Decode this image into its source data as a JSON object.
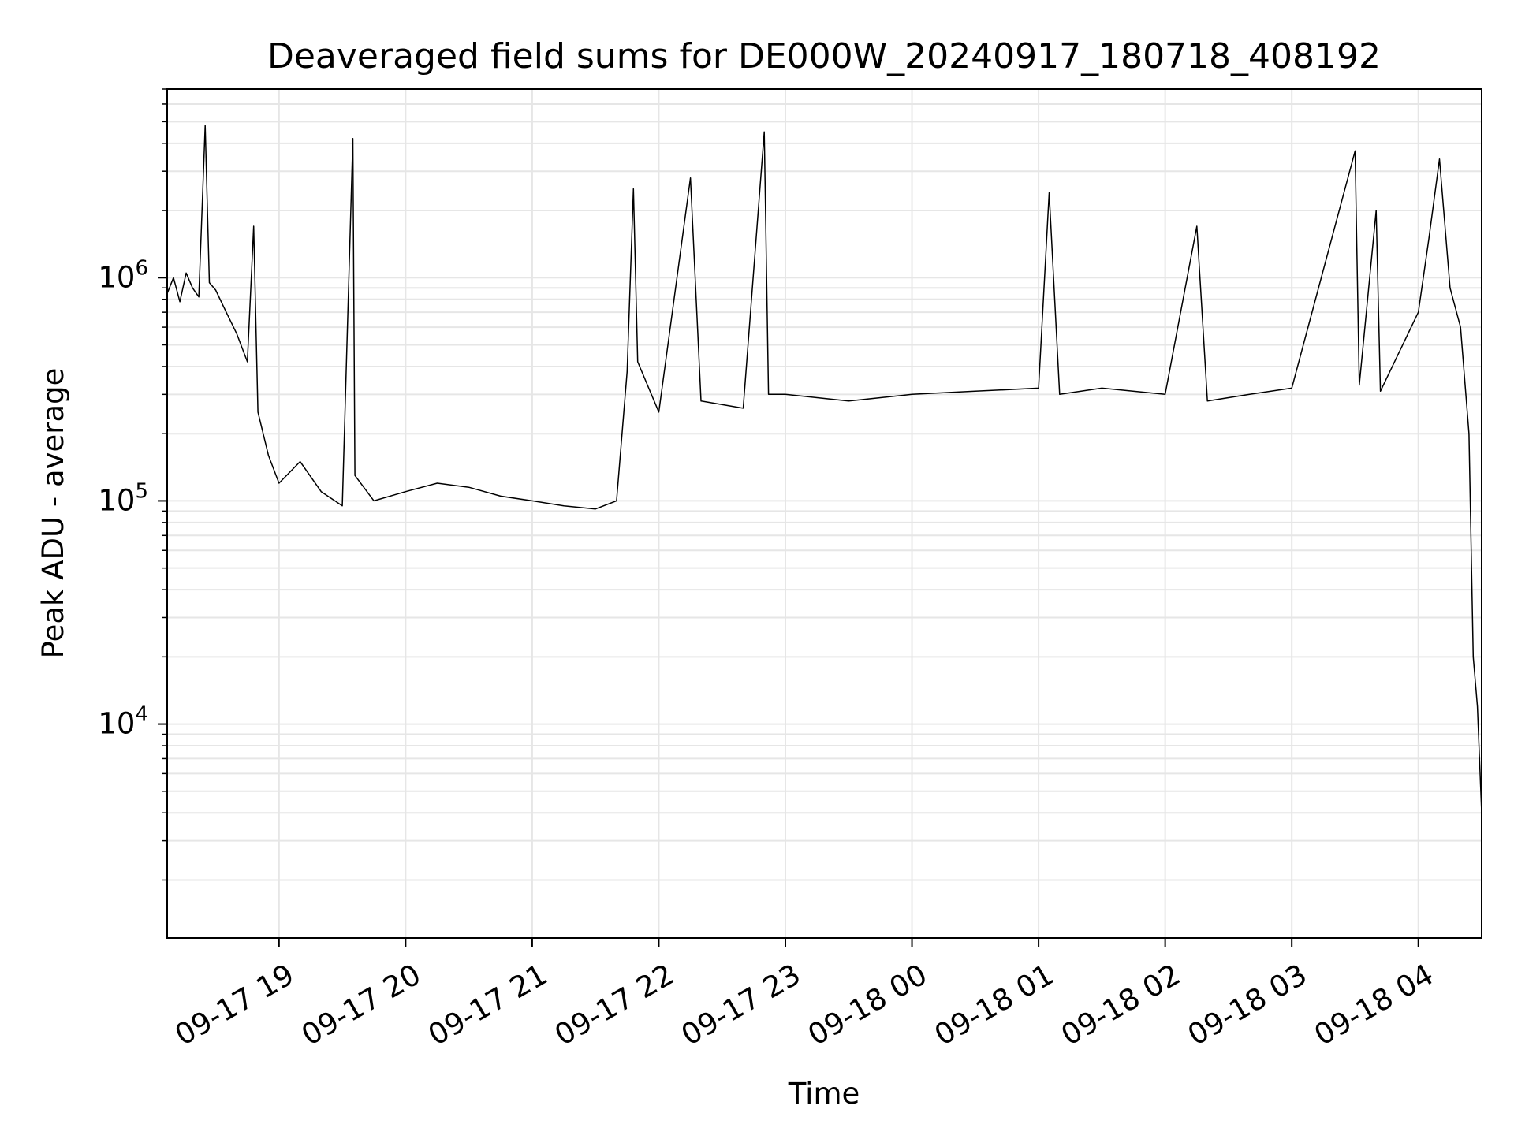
{
  "chart_data": {
    "type": "line",
    "title": "Deaveraged field sums for DE000W_20240917_180718_408192",
    "xlabel": "Time",
    "ylabel": "Peak ADU - average",
    "yscale": "log",
    "grid": true,
    "line_color": "#000000",
    "xlim": [
      "2024-09-17 18:07",
      "2024-09-18 04:30"
    ],
    "ylim": [
      1100,
      7000000
    ],
    "x_ticks": [
      {
        "t": "2024-09-17 19:00",
        "label": "09-17 19"
      },
      {
        "t": "2024-09-17 20:00",
        "label": "09-17 20"
      },
      {
        "t": "2024-09-17 21:00",
        "label": "09-17 21"
      },
      {
        "t": "2024-09-17 22:00",
        "label": "09-17 22"
      },
      {
        "t": "2024-09-17 23:00",
        "label": "09-17 23"
      },
      {
        "t": "2024-09-18 00:00",
        "label": "09-18 00"
      },
      {
        "t": "2024-09-18 01:00",
        "label": "09-18 01"
      },
      {
        "t": "2024-09-18 02:00",
        "label": "09-18 02"
      },
      {
        "t": "2024-09-18 03:00",
        "label": "09-18 03"
      },
      {
        "t": "2024-09-18 04:00",
        "label": "09-18 04"
      }
    ],
    "y_ticks": [
      {
        "value": 10000,
        "base": "10",
        "exp": "4"
      },
      {
        "value": 100000,
        "base": "10",
        "exp": "5"
      },
      {
        "value": 1000000,
        "base": "10",
        "exp": "6"
      }
    ],
    "series": [
      {
        "points": [
          [
            "2024-09-17 18:07",
            850000
          ],
          [
            "2024-09-17 18:10",
            1000000
          ],
          [
            "2024-09-17 18:13",
            780000
          ],
          [
            "2024-09-17 18:16",
            1050000
          ],
          [
            "2024-09-17 18:19",
            900000
          ],
          [
            "2024-09-17 18:22",
            820000
          ],
          [
            "2024-09-17 18:25",
            4800000
          ],
          [
            "2024-09-17 18:27",
            950000
          ],
          [
            "2024-09-17 18:30",
            880000
          ],
          [
            "2024-09-17 18:35",
            700000
          ],
          [
            "2024-09-17 18:40",
            560000
          ],
          [
            "2024-09-17 18:45",
            420000
          ],
          [
            "2024-09-17 18:48",
            1700000
          ],
          [
            "2024-09-17 18:50",
            250000
          ],
          [
            "2024-09-17 18:55",
            160000
          ],
          [
            "2024-09-17 19:00",
            120000
          ],
          [
            "2024-09-17 19:10",
            150000
          ],
          [
            "2024-09-17 19:20",
            110000
          ],
          [
            "2024-09-17 19:30",
            95000
          ],
          [
            "2024-09-17 19:35",
            4200000
          ],
          [
            "2024-09-17 19:36",
            130000
          ],
          [
            "2024-09-17 19:45",
            100000
          ],
          [
            "2024-09-17 20:00",
            110000
          ],
          [
            "2024-09-17 20:15",
            120000
          ],
          [
            "2024-09-17 20:30",
            115000
          ],
          [
            "2024-09-17 20:45",
            105000
          ],
          [
            "2024-09-17 21:00",
            100000
          ],
          [
            "2024-09-17 21:15",
            95000
          ],
          [
            "2024-09-17 21:30",
            92000
          ],
          [
            "2024-09-17 21:40",
            100000
          ],
          [
            "2024-09-17 21:45",
            380000
          ],
          [
            "2024-09-17 21:48",
            2500000
          ],
          [
            "2024-09-17 21:50",
            420000
          ],
          [
            "2024-09-17 22:00",
            250000
          ],
          [
            "2024-09-17 22:15",
            2800000
          ],
          [
            "2024-09-17 22:20",
            280000
          ],
          [
            "2024-09-17 22:40",
            260000
          ],
          [
            "2024-09-17 22:50",
            4500000
          ],
          [
            "2024-09-17 22:52",
            300000
          ],
          [
            "2024-09-17 23:00",
            300000
          ],
          [
            "2024-09-17 23:30",
            280000
          ],
          [
            "2024-09-18 00:00",
            300000
          ],
          [
            "2024-09-18 00:30",
            310000
          ],
          [
            "2024-09-18 01:00",
            320000
          ],
          [
            "2024-09-18 01:05",
            2400000
          ],
          [
            "2024-09-18 01:10",
            300000
          ],
          [
            "2024-09-18 01:30",
            320000
          ],
          [
            "2024-09-18 02:00",
            300000
          ],
          [
            "2024-09-18 02:15",
            1700000
          ],
          [
            "2024-09-18 02:20",
            280000
          ],
          [
            "2024-09-18 02:40",
            300000
          ],
          [
            "2024-09-18 03:00",
            320000
          ],
          [
            "2024-09-18 03:30",
            3700000
          ],
          [
            "2024-09-18 03:32",
            330000
          ],
          [
            "2024-09-18 03:40",
            2000000
          ],
          [
            "2024-09-18 03:42",
            310000
          ],
          [
            "2024-09-18 04:00",
            700000
          ],
          [
            "2024-09-18 04:05",
            1500000
          ],
          [
            "2024-09-18 04:10",
            3400000
          ],
          [
            "2024-09-18 04:15",
            900000
          ],
          [
            "2024-09-18 04:20",
            600000
          ],
          [
            "2024-09-18 04:24",
            200000
          ],
          [
            "2024-09-18 04:26",
            20000
          ],
          [
            "2024-09-18 04:28",
            12000
          ],
          [
            "2024-09-18 04:30",
            4000
          ]
        ]
      }
    ]
  }
}
